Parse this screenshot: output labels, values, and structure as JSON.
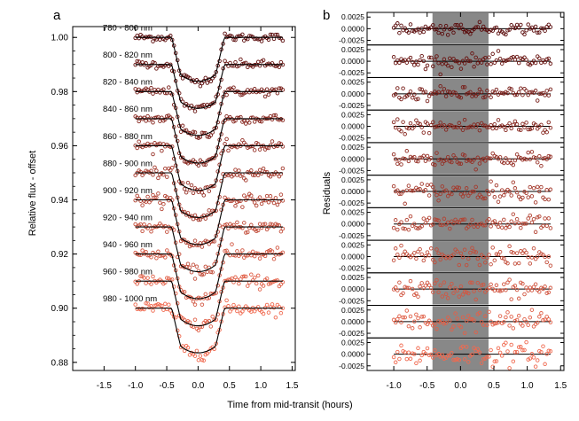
{
  "panels": {
    "a": {
      "label": "a"
    },
    "b": {
      "label": "b"
    }
  },
  "shared_xlabel": "Time from mid-transit (hours)",
  "colors": {
    "darkest": "#5a0b0b",
    "lightest": "#f06a50",
    "model": "#000000",
    "shade": "#888888"
  },
  "chart_data": [
    {
      "type": "scatter",
      "panel": "a",
      "ylabel": "Relative flux - offset",
      "xlim": [
        -2.0,
        1.55
      ],
      "ylim": [
        0.877,
        1.004
      ],
      "xticks": [
        -1.5,
        -1.0,
        -0.5,
        0.0,
        0.5,
        1.0,
        1.5
      ],
      "xtick_labels": [
        "-1.5",
        "-1.0",
        "-0.5",
        "0.0",
        "0.5",
        "1.0",
        "1.5"
      ],
      "yticks": [
        0.88,
        0.9,
        0.92,
        0.94,
        0.96,
        0.98,
        1.0
      ],
      "ytick_labels": [
        "0.88",
        "0.90",
        "0.92",
        "0.94",
        "0.96",
        "0.98",
        "1.00"
      ],
      "x_range_data": [
        -1.0,
        1.35
      ],
      "transit": {
        "t1": -0.42,
        "t2": -0.28,
        "t3": 0.28,
        "t4": 0.42
      },
      "series": [
        {
          "name": "780 - 800 nm",
          "baseline": 1.0,
          "depth": 0.0162
        },
        {
          "name": "800 - 820 nm",
          "baseline": 0.99,
          "depth": 0.0162
        },
        {
          "name": "820 - 840 nm",
          "baseline": 0.98,
          "depth": 0.0162
        },
        {
          "name": "840 - 860 nm",
          "baseline": 0.97,
          "depth": 0.0164
        },
        {
          "name": "860 - 880 nm",
          "baseline": 0.96,
          "depth": 0.0165
        },
        {
          "name": "880 - 900 nm",
          "baseline": 0.95,
          "depth": 0.0165
        },
        {
          "name": "900 - 920 nm",
          "baseline": 0.94,
          "depth": 0.0165
        },
        {
          "name": "920 - 940 nm",
          "baseline": 0.93,
          "depth": 0.0165
        },
        {
          "name": "940 - 960 nm",
          "baseline": 0.92,
          "depth": 0.0165
        },
        {
          "name": "960 - 980 nm",
          "baseline": 0.91,
          "depth": 0.0165
        },
        {
          "name": "980 - 1000 nm",
          "baseline": 0.9,
          "depth": 0.0165
        }
      ]
    },
    {
      "type": "scatter",
      "panel": "b",
      "ylabel": "Residuals",
      "xlim": [
        -1.4,
        1.55
      ],
      "xticks": [
        -1.0,
        -0.5,
        0.0,
        0.5,
        1.0,
        1.5
      ],
      "xtick_labels": [
        "-1.0",
        "-0.5",
        "0.0",
        "0.5",
        "1.0",
        "1.5"
      ],
      "sub_ylim": [
        -0.0035,
        0.0035
      ],
      "sub_yticks": [
        0.0025,
        0.0,
        -0.0025
      ],
      "sub_ytick_labels": [
        "0.0025",
        "0.0000",
        "-0.0025"
      ],
      "shaded_interval": [
        -0.42,
        0.42
      ],
      "n_subpanels": 11,
      "x_range_data": [
        -1.0,
        1.35
      ],
      "residual_scatter": [
        0.0006,
        0.0007,
        0.0007,
        0.0008,
        0.0008,
        0.0009,
        0.0009,
        0.001,
        0.001,
        0.0011,
        0.0012
      ]
    }
  ]
}
